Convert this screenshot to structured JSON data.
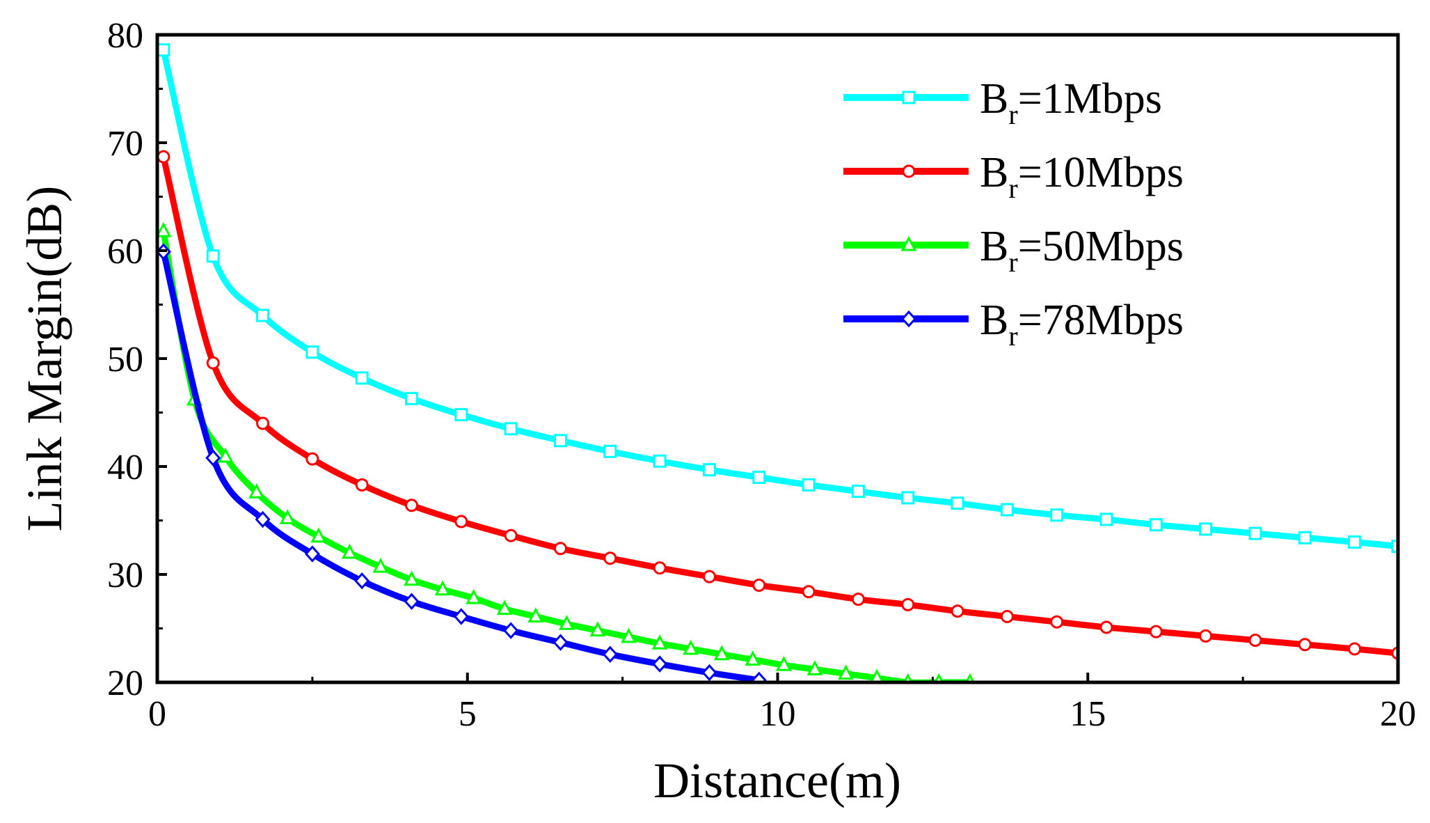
{
  "chart_data": {
    "type": "line",
    "title": "",
    "xlabel": "Distance(m)",
    "ylabel": "Link Margin(dB)",
    "xlim": [
      0,
      20
    ],
    "ylim": [
      20,
      80
    ],
    "xticks": [
      0,
      5,
      10,
      15,
      20
    ],
    "yticks": [
      20,
      30,
      40,
      50,
      60,
      70,
      80
    ],
    "xtick_labels": [
      "0",
      "5",
      "10",
      "15",
      "20"
    ],
    "ytick_labels": [
      "20",
      "30",
      "40",
      "50",
      "60",
      "70",
      "80"
    ],
    "grid": false,
    "legend_position": "top-right",
    "series": [
      {
        "name": "Br=1Mbps",
        "label_main": "B",
        "label_sub": "r",
        "label_rest": "=1Mbps",
        "color": "#00ffff",
        "marker": "square",
        "x": [
          0.1,
          0.9,
          1.7,
          2.5,
          3.3,
          4.1,
          4.9,
          5.7,
          6.5,
          7.3,
          8.1,
          8.9,
          9.7,
          10.5,
          11.3,
          12.1,
          12.9,
          13.7,
          14.5,
          15.3,
          16.1,
          16.9,
          17.7,
          18.5,
          19.3,
          20.0
        ],
        "y": [
          78.6,
          59.5,
          54.0,
          50.6,
          48.2,
          46.3,
          44.8,
          43.5,
          42.4,
          41.4,
          40.5,
          39.7,
          39.0,
          38.3,
          37.7,
          37.1,
          36.6,
          36.0,
          35.5,
          35.1,
          34.6,
          34.2,
          33.8,
          33.4,
          33.0,
          32.6
        ]
      },
      {
        "name": "Br=10Mbps",
        "label_main": "B",
        "label_sub": "r",
        "label_rest": "=10Mbps",
        "color": "#ff0000",
        "marker": "circle",
        "x": [
          0.1,
          0.9,
          1.7,
          2.5,
          3.3,
          4.1,
          4.9,
          5.7,
          6.5,
          7.3,
          8.1,
          8.9,
          9.7,
          10.5,
          11.3,
          12.1,
          12.9,
          13.7,
          14.5,
          15.3,
          16.1,
          16.9,
          17.7,
          18.5,
          19.3,
          20.0
        ],
        "y": [
          68.7,
          49.6,
          44.0,
          40.7,
          38.3,
          36.4,
          34.9,
          33.6,
          32.4,
          31.5,
          30.6,
          29.8,
          29.0,
          28.4,
          27.7,
          27.2,
          26.6,
          26.1,
          25.6,
          25.1,
          24.7,
          24.3,
          23.9,
          23.5,
          23.1,
          22.7
        ]
      },
      {
        "name": "Br=50Mbps",
        "label_main": "B",
        "label_sub": "r",
        "label_rest": "=50Mbps",
        "color": "#00ff00",
        "marker": "triangle",
        "x": [
          0.1,
          0.6,
          1.1,
          1.6,
          2.1,
          2.6,
          3.1,
          3.6,
          4.1,
          4.6,
          5.1,
          5.6,
          6.1,
          6.6,
          7.1,
          7.6,
          8.1,
          8.6,
          9.1,
          9.6,
          10.1,
          10.6,
          11.1,
          11.6,
          12.1,
          12.6,
          13.1
        ],
        "y": [
          61.8,
          46.2,
          40.9,
          37.6,
          35.2,
          33.5,
          32.0,
          30.7,
          29.5,
          28.6,
          27.8,
          26.8,
          26.1,
          25.4,
          24.8,
          24.2,
          23.6,
          23.1,
          22.6,
          22.1,
          21.6,
          21.2,
          20.8,
          20.4,
          20.0,
          20.0,
          20.0
        ]
      },
      {
        "name": "Br=78Mbps",
        "label_main": "B",
        "label_sub": "r",
        "label_rest": "=78Mbps",
        "color": "#0000ff",
        "marker": "diamond",
        "x": [
          0.1,
          0.9,
          1.7,
          2.5,
          3.3,
          4.1,
          4.9,
          5.7,
          6.5,
          7.3,
          8.1,
          8.9,
          9.7
        ],
        "y": [
          59.9,
          40.8,
          35.1,
          31.9,
          29.4,
          27.5,
          26.1,
          24.8,
          23.7,
          22.6,
          21.7,
          20.9,
          20.2
        ]
      }
    ]
  }
}
